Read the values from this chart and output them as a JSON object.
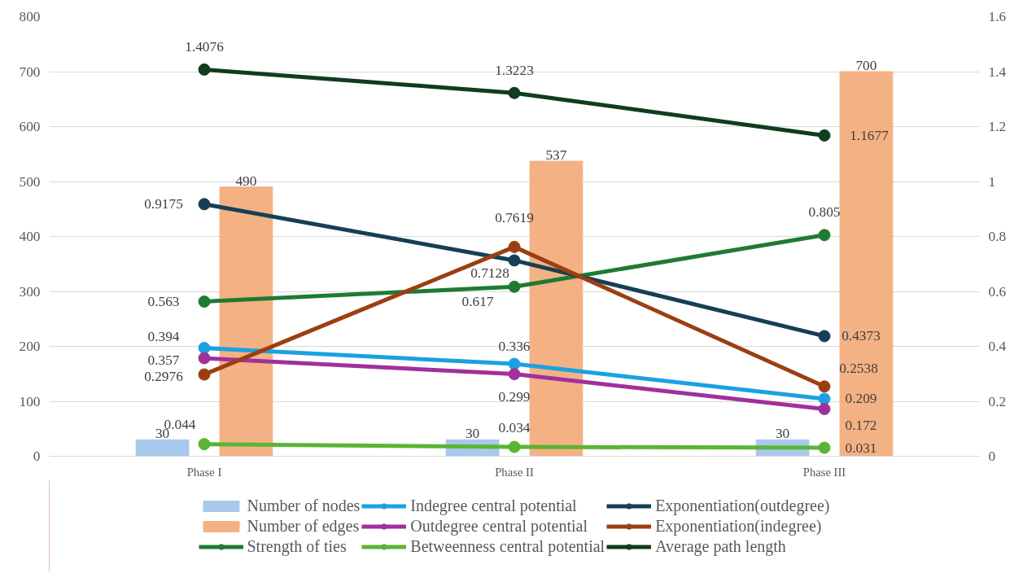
{
  "chart_data": {
    "type": "bar",
    "categories": [
      "Phase I",
      "Phase II",
      "Phase III"
    ],
    "series": [
      {
        "name": "Number of nodes",
        "type": "bar",
        "color": "#a9c9ec",
        "values": [
          30,
          30,
          30
        ]
      },
      {
        "name": "Number of edges",
        "type": "bar",
        "color": "#f4b183",
        "values": [
          490,
          537,
          700
        ]
      },
      {
        "name": "Strength of ties",
        "type": "line",
        "axis": "y2",
        "color": "#1e7b34",
        "values": [
          0.563,
          0.617,
          0.805
        ]
      },
      {
        "name": "Indegree central potential",
        "type": "line",
        "axis": "y2",
        "color": "#1ba1e2",
        "values": [
          0.394,
          0.336,
          0.209
        ]
      },
      {
        "name": "Outdegree central potential",
        "type": "line",
        "axis": "y2",
        "color": "#a0309c",
        "values": [
          0.357,
          0.299,
          0.172
        ]
      },
      {
        "name": "Betweenness central potential",
        "type": "line",
        "axis": "y2",
        "color": "#5ab534",
        "values": [
          0.044,
          0.034,
          0.031
        ]
      },
      {
        "name": "Exponentiation(outdegree)",
        "type": "line",
        "axis": "y2",
        "color": "#163f55",
        "values": [
          0.9175,
          0.7128,
          0.4373
        ]
      },
      {
        "name": "Exponentiation(indegree)",
        "type": "line",
        "axis": "y2",
        "color": "#9c3e12",
        "values": [
          0.2976,
          0.7619,
          0.2538
        ]
      },
      {
        "name": "Average path length",
        "type": "line",
        "axis": "y2",
        "color": "#0f3d1e",
        "values": [
          1.4076,
          1.3223,
          1.1677
        ]
      }
    ],
    "ylim": [
      0,
      800
    ],
    "yticks": [
      0,
      100,
      200,
      300,
      400,
      500,
      600,
      700,
      800
    ],
    "y2lim": [
      0,
      1.6
    ],
    "y2ticks": [
      0,
      0.2,
      0.4,
      0.6,
      0.8,
      1,
      1.2,
      1.4,
      1.6
    ],
    "grid": "y",
    "legend": "bottom",
    "marker": "circle",
    "data_labels": true
  }
}
